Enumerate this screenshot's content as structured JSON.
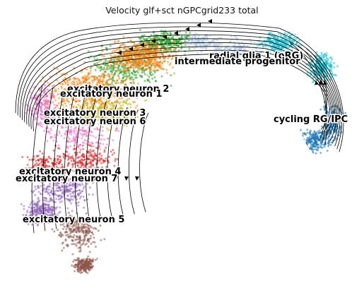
{
  "title": "Velocity glf+sct nGPCgrid233 total",
  "chart_data": {
    "type": "scatter",
    "title": "Velocity glf+sct nGPCgrid233 total",
    "xlabel": "",
    "ylabel": "",
    "axes_visible": false,
    "grid": false,
    "legend": "on data",
    "overlay": "velocity streamlines",
    "clusters": [
      {
        "name": "radial glia 1 (oRG)",
        "color": "#17becf"
      },
      {
        "name": "intermediate progenitor",
        "color": "#aec7e8"
      },
      {
        "name": "cycling RG/IPC",
        "color": "#1f77b4"
      },
      {
        "name": "excitatory neuron 2",
        "color": "#2ca02c"
      },
      {
        "name": "excitatory neuron 1",
        "color": "#ff7f0e"
      },
      {
        "name": "excitatory neuron 3",
        "color": "#bcbd22"
      },
      {
        "name": "excitatory neuron 6",
        "color": "#e377c2"
      },
      {
        "name": "excitatory neuron 4",
        "color": "#d62728"
      },
      {
        "name": "excitatory neuron 7",
        "color": "#9467bd"
      },
      {
        "name": "excitatory neuron 5",
        "color": "#8c564b"
      }
    ]
  }
}
